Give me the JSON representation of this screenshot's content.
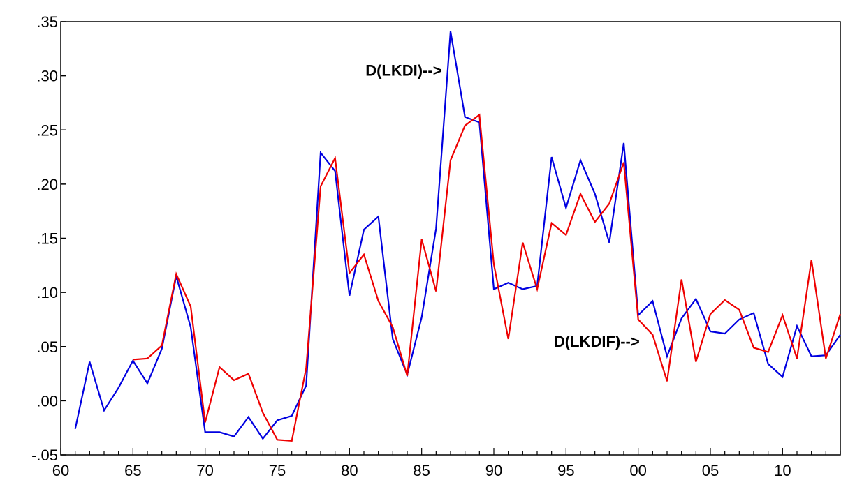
{
  "chart_data": {
    "type": "line",
    "title": "",
    "xlabel": "",
    "ylabel": "",
    "xlim": [
      1960,
      2014
    ],
    "ylim": [
      -0.05,
      0.35
    ],
    "grid": false,
    "x_ticks": [
      1960,
      1965,
      1970,
      1975,
      1980,
      1985,
      1990,
      1995,
      2000,
      2005,
      2010
    ],
    "x_tick_labels": [
      "60",
      "65",
      "70",
      "75",
      "80",
      "85",
      "90",
      "95",
      "00",
      "05",
      "10"
    ],
    "y_ticks": [
      -0.05,
      0.0,
      0.05,
      0.1,
      0.15,
      0.2,
      0.25,
      0.3,
      0.35
    ],
    "y_tick_labels": [
      "-.05",
      ".00",
      ".05",
      ".10",
      ".15",
      ".20",
      ".25",
      ".30",
      ".35"
    ],
    "annotations": [
      {
        "text": "D(LKDI)-->",
        "x": 1986.4,
        "y": 0.3
      },
      {
        "text": "D(LKDIF)-->",
        "x": 2000.1,
        "y": 0.05
      }
    ],
    "series": [
      {
        "color": "#0000e0",
        "x": [
          1961,
          1962,
          1963,
          1964,
          1965,
          1966,
          1967,
          1968,
          1969,
          1970,
          1971,
          1972,
          1973,
          1974,
          1975,
          1976,
          1977,
          1978,
          1979,
          1980,
          1981,
          1982,
          1983,
          1984,
          1985,
          1986,
          1987,
          1988,
          1989,
          1990,
          1991,
          1992,
          1993,
          1994,
          1995,
          1996,
          1997,
          1998,
          1999,
          2000,
          2001,
          2002,
          2003,
          2004,
          2005,
          2006,
          2007,
          2008,
          2009,
          2010,
          2011,
          2012,
          2013,
          2014
        ],
        "values": [
          -0.026,
          0.036,
          -0.009,
          0.012,
          0.037,
          0.016,
          0.048,
          0.115,
          0.068,
          -0.029,
          -0.029,
          -0.033,
          -0.015,
          -0.035,
          -0.018,
          -0.014,
          0.014,
          0.229,
          0.212,
          0.097,
          0.158,
          0.17,
          0.057,
          0.024,
          0.077,
          0.159,
          0.341,
          0.262,
          0.257,
          0.103,
          0.109,
          0.103,
          0.106,
          0.225,
          0.178,
          0.222,
          0.191,
          0.146,
          0.238,
          0.079,
          0.092,
          0.041,
          0.076,
          0.094,
          0.064,
          0.062,
          0.075,
          0.081,
          0.034,
          0.022,
          0.069,
          0.041,
          0.042,
          0.061
        ]
      },
      {
        "color": "#ee0000",
        "x": [
          1965,
          1966,
          1967,
          1968,
          1969,
          1970,
          1971,
          1972,
          1973,
          1974,
          1975,
          1976,
          1977,
          1978,
          1979,
          1980,
          1981,
          1982,
          1983,
          1984,
          1985,
          1986,
          1987,
          1988,
          1989,
          1990,
          1991,
          1992,
          1993,
          1994,
          1995,
          1996,
          1997,
          1998,
          1999,
          2000,
          2001,
          2002,
          2003,
          2004,
          2005,
          2006,
          2007,
          2008,
          2009,
          2010,
          2011,
          2012,
          2013,
          2014
        ],
        "values": [
          0.038,
          0.039,
          0.051,
          0.117,
          0.087,
          -0.02,
          0.031,
          0.019,
          0.025,
          -0.011,
          -0.036,
          -0.037,
          0.03,
          0.198,
          0.224,
          0.118,
          0.135,
          0.092,
          0.068,
          0.023,
          0.149,
          0.101,
          0.222,
          0.254,
          0.264,
          0.126,
          0.057,
          0.146,
          0.103,
          0.164,
          0.153,
          0.191,
          0.165,
          0.182,
          0.22,
          0.075,
          0.061,
          0.018,
          0.112,
          0.036,
          0.08,
          0.093,
          0.084,
          0.049,
          0.045,
          0.079,
          0.039,
          0.13,
          0.039,
          0.08
        ]
      }
    ]
  }
}
